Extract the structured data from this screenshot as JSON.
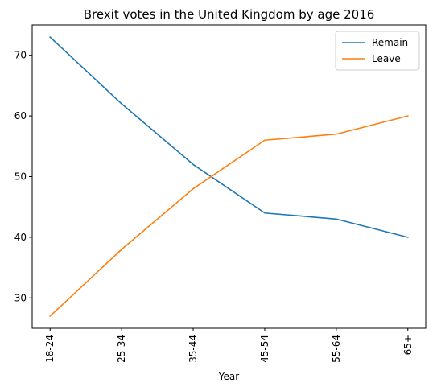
{
  "chart_data": {
    "type": "line",
    "title": "Brexit votes in the United Kingdom by age 2016",
    "xlabel": "Year",
    "ylabel": "",
    "categories": [
      "18-24",
      "25-34",
      "35-44",
      "45-54",
      "55-64",
      "65+"
    ],
    "series": [
      {
        "name": "Remain",
        "color": "#1f77b4",
        "values": [
          73,
          62,
          52,
          44,
          43,
          40
        ]
      },
      {
        "name": "Leave",
        "color": "#ff7f0e",
        "values": [
          27,
          38,
          48,
          56,
          57,
          60
        ]
      }
    ],
    "ylim": [
      25,
      75
    ],
    "yticks": [
      30,
      40,
      50,
      60,
      70
    ],
    "grid": false,
    "legend_position": "top-right",
    "x_tick_rotation": "vertical"
  }
}
